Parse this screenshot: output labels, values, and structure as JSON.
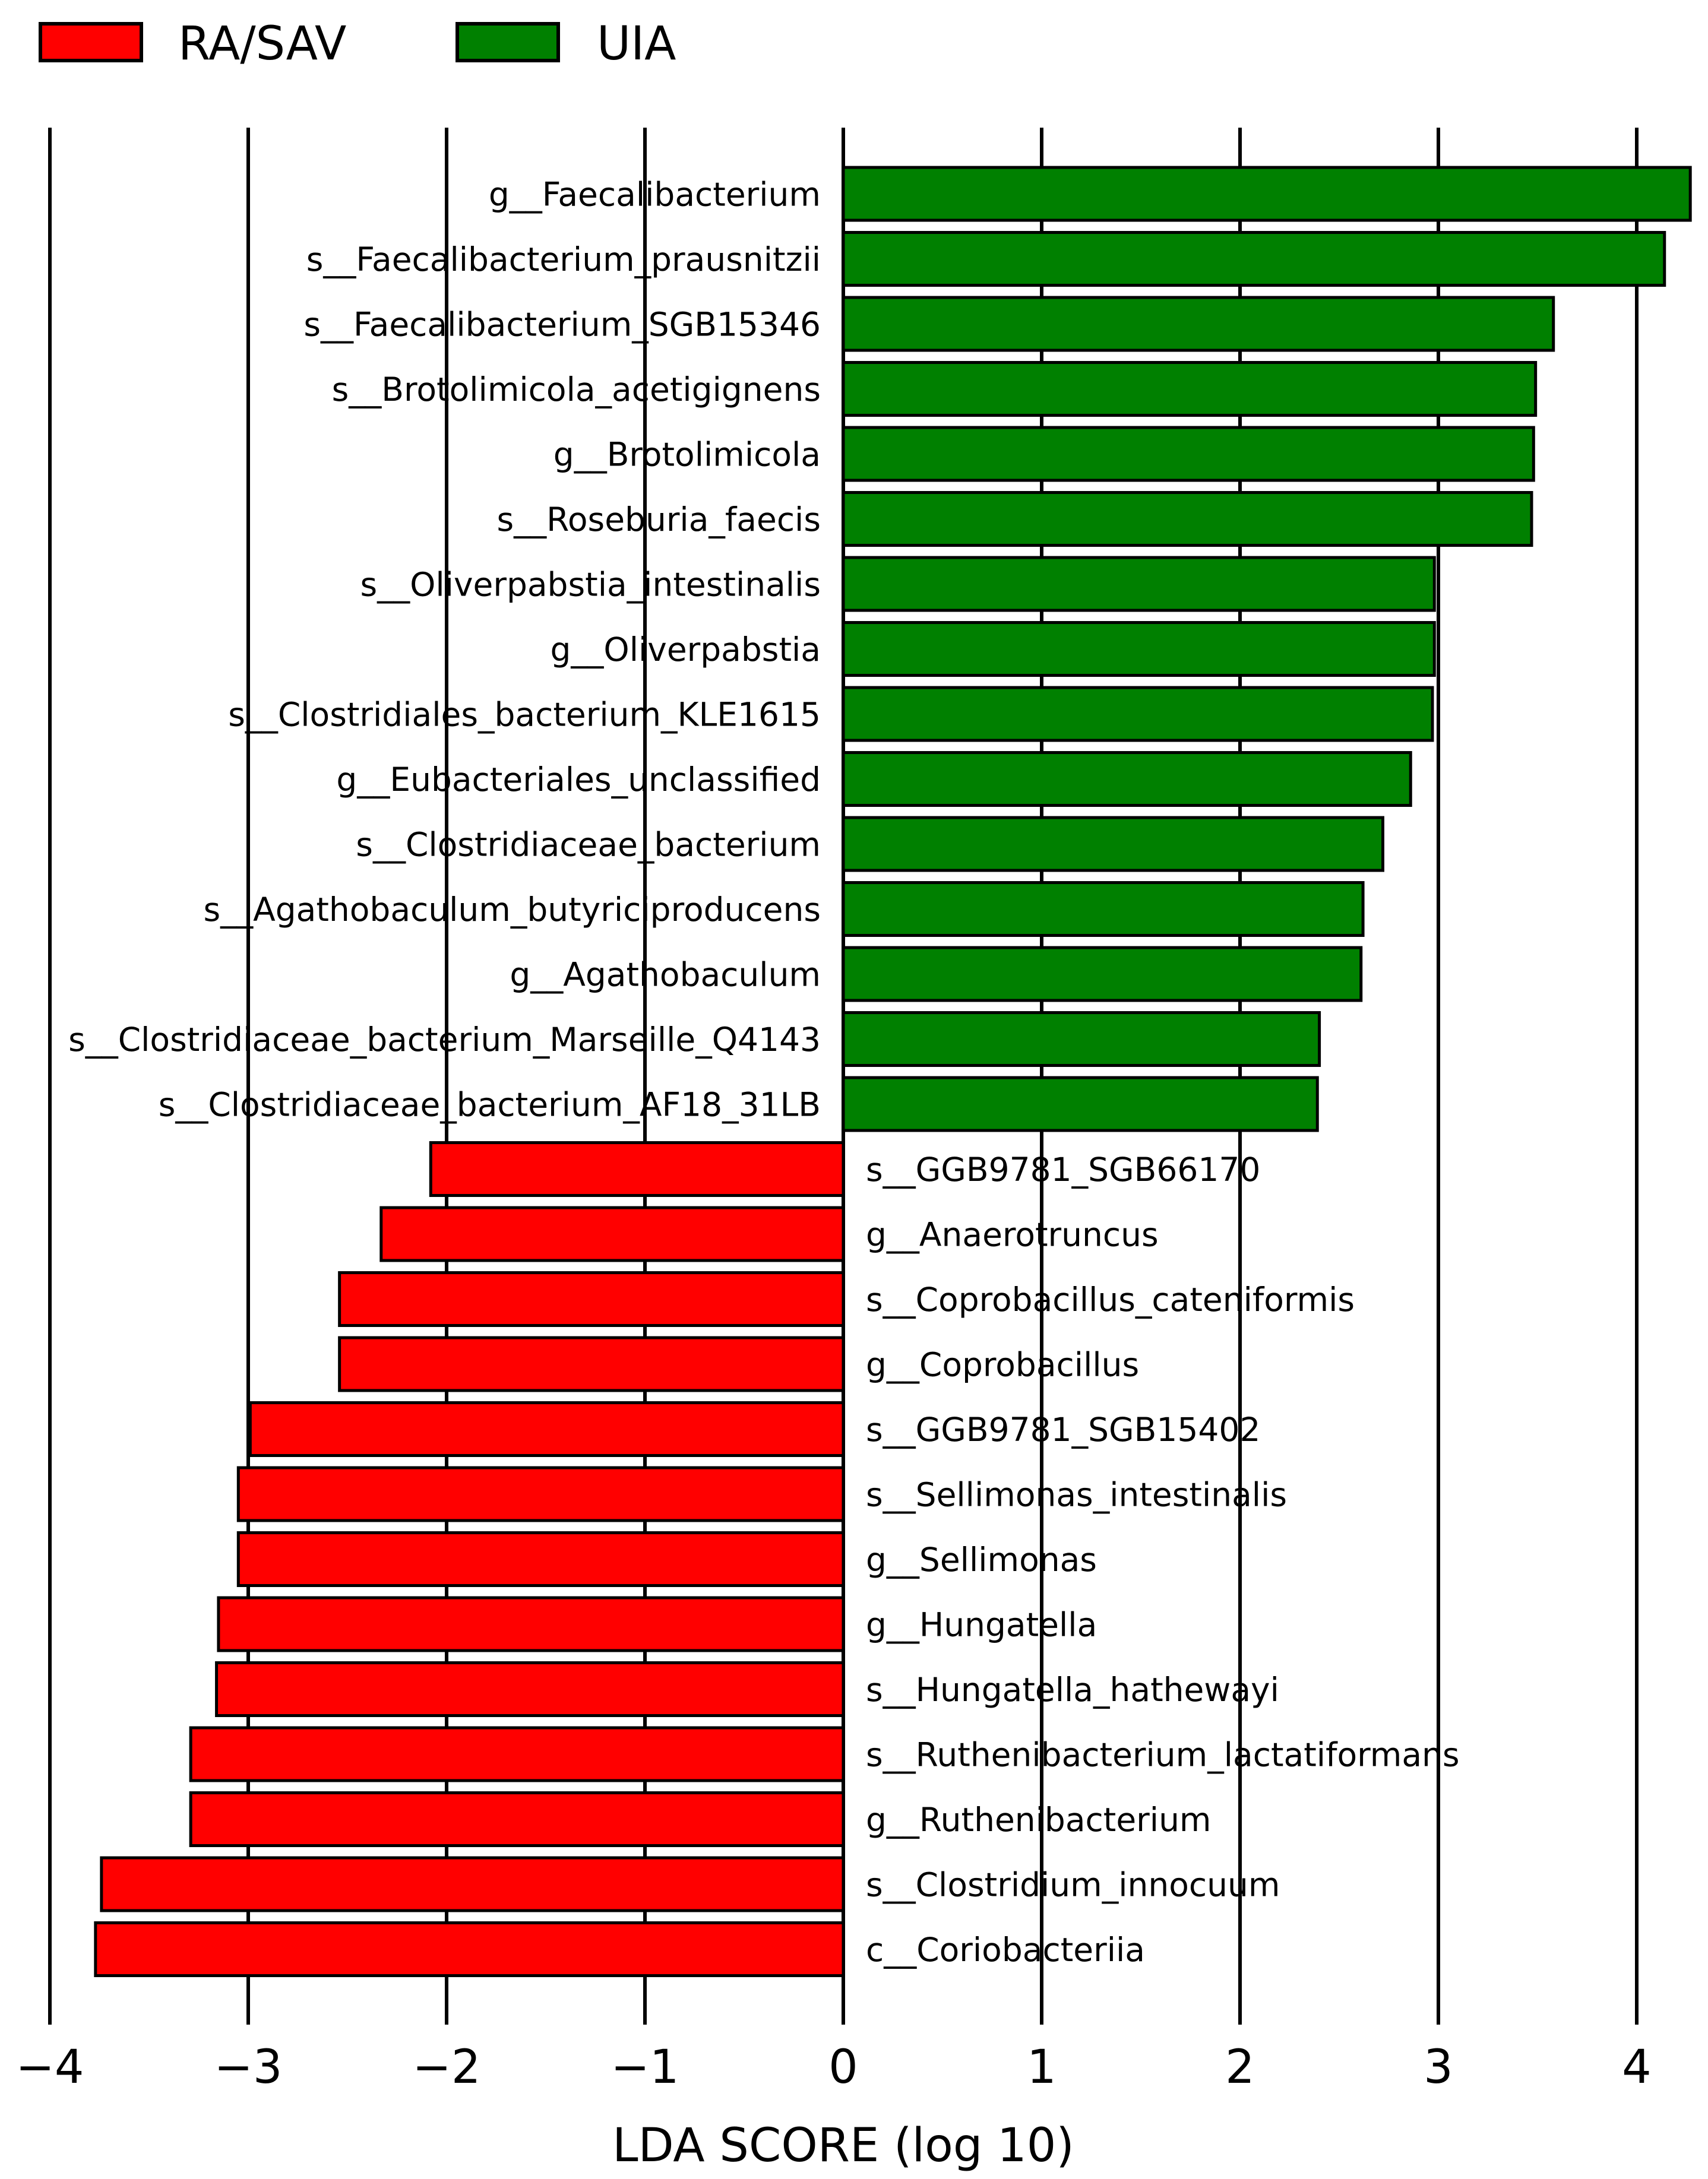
{
  "chart_data": {
    "type": "bar",
    "orientation": "horizontal",
    "xlabel": "LDA SCORE (log 10)",
    "xlim": [
      -4,
      4.3
    ],
    "xticks": [
      -4,
      -3,
      -2,
      -1,
      0,
      1,
      2,
      3,
      4
    ],
    "xtick_labels": [
      "−4",
      "−3",
      "−2",
      "−1",
      "0",
      "1",
      "2",
      "3",
      "4"
    ],
    "grid": "vertical lines at each x tick",
    "legend": {
      "placement": "top-left",
      "entries": [
        {
          "label": "RA/SAV",
          "color": "#ff0000"
        },
        {
          "label": "UIA",
          "color": "#008000"
        }
      ]
    },
    "series": [
      {
        "name": "UIA",
        "color": "#008000",
        "categories": [
          "g__Faecalibacterium",
          "s__Faecalibacterium_prausnitzii",
          "s__Faecalibacterium_SGB15346",
          "s__Brotolimicola_acetigignens",
          "g__Brotolimicola",
          "s__Roseburia_faecis",
          "s__Oliverpabstia_intestinalis",
          "g__Oliverpabstia",
          "s__Clostridiales_bacterium_KLE1615",
          "g__Eubacteriales_unclassified",
          "s__Clostridiaceae_bacterium",
          "s__Agathobaculum_butyriciproducens",
          "g__Agathobaculum",
          "s__Clostridiaceae_bacterium_Marseille_Q4143",
          "s__Clostridiaceae_bacterium_AF18_31LB"
        ],
        "values": [
          4.27,
          4.14,
          3.58,
          3.49,
          3.48,
          3.47,
          2.98,
          2.98,
          2.97,
          2.86,
          2.72,
          2.62,
          2.61,
          2.4,
          2.39
        ]
      },
      {
        "name": "RA/SAV",
        "color": "#ff0000",
        "categories": [
          "s__GGB9781_SGB66170",
          "g__Anaerotruncus",
          "s__Coprobacillus_cateniformis",
          "g__Coprobacillus",
          "s__GGB9781_SGB15402",
          "s__Sellimonas_intestinalis",
          "g__Sellimonas",
          "g__Hungatella",
          "s__Hungatella_hathewayi",
          "s__Ruthenibacterium_lactatiformans",
          "g__Ruthenibacterium",
          "s__Clostridium_innocuum",
          "c__Coriobacteriia"
        ],
        "values": [
          -2.08,
          -2.33,
          -2.54,
          -2.54,
          -2.99,
          -3.05,
          -3.05,
          -3.15,
          -3.16,
          -3.29,
          -3.29,
          -3.74,
          -3.77
        ]
      }
    ]
  }
}
